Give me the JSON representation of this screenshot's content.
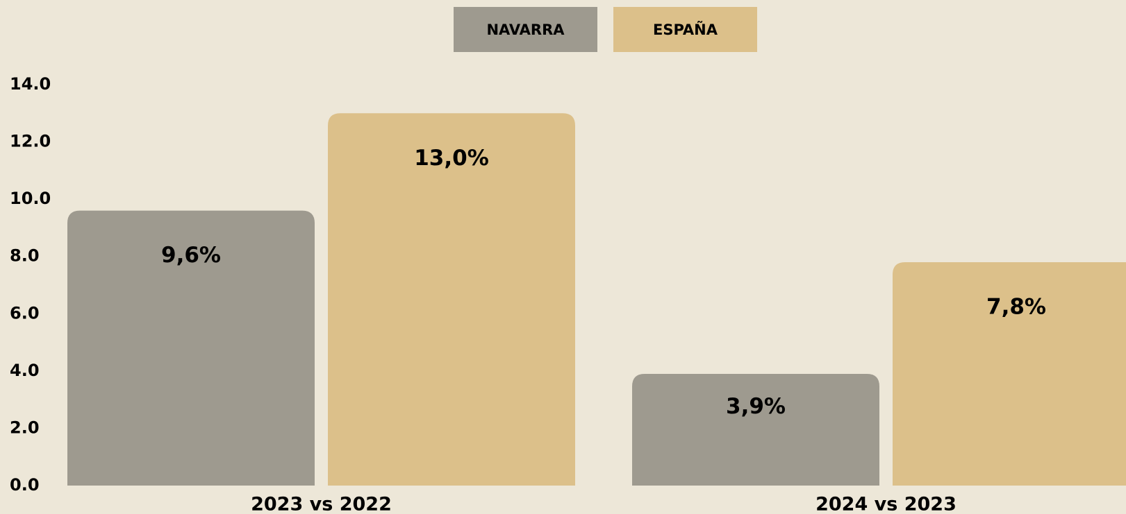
{
  "chart_data": {
    "type": "bar",
    "categories": [
      "2023 vs 2022",
      "2024 vs 2023"
    ],
    "series": [
      {
        "name": "NAVARRA",
        "color": "#9e9a8f",
        "values": [
          9.6,
          3.9
        ],
        "value_labels": [
          "9,6%",
          "3,9%"
        ]
      },
      {
        "name": "ESPAÑA",
        "color": "#dcc08a",
        "values": [
          13.0,
          7.8
        ],
        "value_labels": [
          "13,0%",
          "7,8%"
        ]
      }
    ],
    "ylim": [
      0,
      14
    ],
    "yticks": [
      {
        "value": 0,
        "label": "0.0"
      },
      {
        "value": 2,
        "label": "2.0"
      },
      {
        "value": 4,
        "label": "4.0"
      },
      {
        "value": 6,
        "label": "6.0"
      },
      {
        "value": 8,
        "label": "8.0"
      },
      {
        "value": 10,
        "label": "10.0"
      },
      {
        "value": 12,
        "label": "12.0"
      },
      {
        "value": 14,
        "label": "14.0"
      }
    ],
    "legend": "top"
  }
}
